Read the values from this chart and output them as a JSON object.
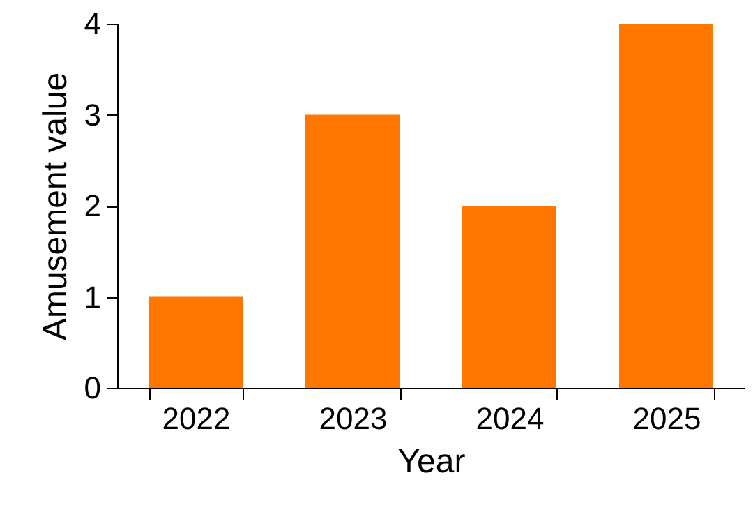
{
  "chart_data": {
    "type": "bar",
    "xlabel": "Year",
    "ylabel": "Amusement value",
    "categories": [
      "2022",
      "2023",
      "2024",
      "2025"
    ],
    "values": [
      1,
      3,
      2,
      4
    ],
    "color": "#ff7700",
    "ylim": [
      0,
      4
    ],
    "yticks": [
      0,
      1,
      2,
      3,
      4
    ],
    "grid": false
  }
}
